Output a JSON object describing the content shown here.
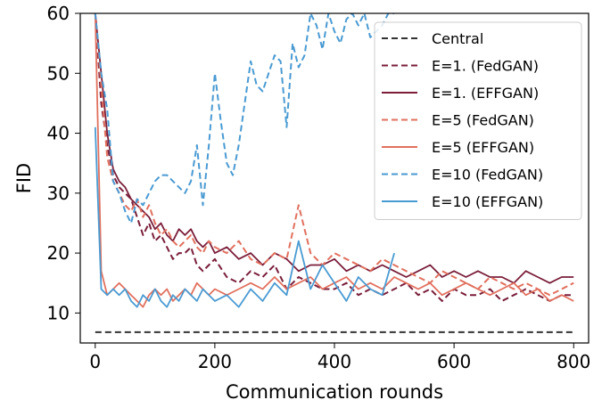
{
  "chart_data": {
    "type": "line",
    "xlabel": "Communication rounds",
    "ylabel": "FID",
    "xlim": [
      -25,
      825
    ],
    "ylim": [
      5,
      60
    ],
    "xticks": [
      0,
      200,
      400,
      600,
      800
    ],
    "yticks": [
      10,
      20,
      30,
      40,
      50,
      60
    ],
    "xtick_labels": [
      "0",
      "200",
      "400",
      "600",
      "800"
    ],
    "ytick_labels": [
      "10",
      "20",
      "30",
      "40",
      "50",
      "60"
    ],
    "grid": false,
    "legend_position": "top-right",
    "series": [
      {
        "name": "Central",
        "color": "#333333",
        "dash": true,
        "x": [
          0,
          800
        ],
        "y": [
          6.8,
          6.8
        ]
      },
      {
        "name": "E=1. (FedGAN)",
        "color": "#7a1e3a",
        "dash": true,
        "x": [
          0,
          10,
          20,
          30,
          40,
          50,
          60,
          70,
          80,
          90,
          100,
          110,
          120,
          130,
          140,
          150,
          160,
          170,
          180,
          190,
          200,
          220,
          240,
          260,
          280,
          300,
          320,
          340,
          360,
          380,
          400,
          420,
          440,
          460,
          480,
          500,
          520,
          540,
          560,
          580,
          600,
          620,
          640,
          660,
          680,
          700,
          720,
          740,
          760,
          780,
          800
        ],
        "y": [
          60,
          45,
          38,
          33,
          31,
          30,
          29,
          26,
          23,
          25,
          22,
          23,
          21,
          19,
          20,
          20,
          21,
          18,
          17,
          18,
          19,
          16,
          15,
          17,
          16,
          18,
          14,
          16,
          15,
          14,
          14,
          15,
          13,
          14,
          13,
          14,
          15,
          13,
          14,
          12,
          14,
          13,
          13,
          14,
          12,
          13,
          14,
          13,
          12,
          13,
          13
        ]
      },
      {
        "name": "E=1. (EFFGAN)",
        "color": "#7a1e3a",
        "dash": false,
        "x": [
          0,
          10,
          20,
          30,
          40,
          50,
          60,
          70,
          80,
          90,
          100,
          110,
          120,
          130,
          140,
          150,
          160,
          170,
          180,
          190,
          200,
          220,
          240,
          260,
          280,
          300,
          320,
          340,
          360,
          380,
          400,
          420,
          440,
          460,
          480,
          500,
          520,
          540,
          560,
          580,
          600,
          620,
          640,
          660,
          680,
          700,
          720,
          740,
          760,
          780,
          800
        ],
        "y": [
          60,
          50,
          40,
          34,
          32,
          31,
          29,
          28,
          27,
          26,
          24,
          25,
          23,
          22,
          24,
          23,
          24,
          22,
          21,
          22,
          20,
          21,
          19,
          20,
          18,
          20,
          19,
          17,
          18,
          18,
          19,
          17,
          18,
          17,
          18,
          17,
          16,
          17,
          18,
          16,
          17,
          16,
          17,
          16,
          16,
          15,
          17,
          16,
          15,
          16,
          16
        ]
      },
      {
        "name": "E=5 (FedGAN)",
        "color": "#e1705e",
        "dash": true,
        "x": [
          0,
          10,
          20,
          30,
          40,
          50,
          60,
          70,
          80,
          90,
          100,
          110,
          120,
          130,
          140,
          150,
          160,
          170,
          180,
          190,
          200,
          220,
          240,
          260,
          280,
          300,
          320,
          340,
          360,
          380,
          400,
          420,
          440,
          460,
          480,
          500,
          520,
          540,
          560,
          580,
          600,
          620,
          640,
          660,
          680,
          700,
          720,
          740,
          760,
          780,
          800
        ],
        "y": [
          60,
          48,
          36,
          32,
          30,
          28,
          27,
          29,
          26,
          28,
          25,
          23,
          24,
          22,
          21,
          22,
          23,
          21,
          20,
          22,
          21,
          20,
          22,
          19,
          18,
          20,
          19,
          28,
          20,
          18,
          20,
          19,
          18,
          17,
          19,
          18,
          17,
          16,
          15,
          17,
          16,
          15,
          14,
          16,
          15,
          14,
          15,
          14,
          13,
          14,
          15
        ]
      },
      {
        "name": "E=5 (EFFGAN)",
        "color": "#e1705e",
        "dash": false,
        "x": [
          0,
          10,
          20,
          30,
          40,
          50,
          60,
          70,
          80,
          90,
          100,
          110,
          120,
          130,
          140,
          150,
          160,
          170,
          180,
          190,
          200,
          220,
          240,
          260,
          280,
          300,
          320,
          340,
          360,
          380,
          400,
          420,
          440,
          460,
          480,
          500,
          520,
          540,
          560,
          580,
          600,
          620,
          640,
          660,
          680,
          700,
          720,
          740,
          760,
          780,
          800
        ],
        "y": [
          60,
          17,
          13,
          14,
          15,
          14,
          13,
          12,
          11,
          13,
          14,
          13,
          14,
          12,
          13,
          14,
          13,
          15,
          14,
          13,
          14,
          13,
          14,
          15,
          14,
          16,
          14,
          15,
          16,
          14,
          15,
          16,
          14,
          15,
          14,
          16,
          15,
          14,
          15,
          13,
          14,
          15,
          14,
          13,
          14,
          15,
          13,
          14,
          12,
          13,
          12
        ]
      },
      {
        "name": "E=10 (FedGAN)",
        "color": "#4a9ad2",
        "dash": true,
        "x": [
          0,
          10,
          20,
          30,
          40,
          50,
          60,
          70,
          80,
          90,
          100,
          110,
          120,
          130,
          140,
          150,
          160,
          170,
          180,
          190,
          200,
          210,
          220,
          230,
          240,
          250,
          260,
          270,
          280,
          290,
          300,
          310,
          320,
          330,
          340,
          350,
          360,
          370,
          380,
          390,
          400,
          410,
          420,
          430,
          440,
          450,
          460,
          470,
          480,
          490,
          500
        ],
        "y": [
          60,
          50,
          44,
          32,
          30,
          27,
          25,
          29,
          28,
          30,
          32,
          33,
          33,
          32,
          31,
          30,
          32,
          38,
          28,
          38,
          50,
          42,
          35,
          33,
          38,
          45,
          52,
          48,
          47,
          50,
          53,
          52,
          41,
          55,
          51,
          53,
          60,
          58,
          54,
          60,
          57,
          55,
          59,
          60,
          58,
          60,
          56,
          57,
          58,
          60,
          60
        ]
      },
      {
        "name": "E=10 (EFFGAN)",
        "color": "#4a9ad2",
        "dash": false,
        "x": [
          0,
          10,
          20,
          30,
          40,
          50,
          60,
          70,
          80,
          90,
          100,
          110,
          120,
          130,
          140,
          150,
          160,
          170,
          180,
          190,
          200,
          220,
          240,
          260,
          280,
          300,
          320,
          340,
          360,
          380,
          400,
          420,
          440,
          460,
          480,
          500
        ],
        "y": [
          41,
          14,
          13,
          14,
          13,
          14,
          12,
          11,
          13,
          12,
          14,
          12,
          11,
          13,
          12,
          14,
          13,
          12,
          14,
          13,
          12,
          13,
          11,
          14,
          12,
          15,
          13,
          22,
          14,
          18,
          15,
          12,
          16,
          14,
          13,
          20
        ]
      }
    ]
  }
}
